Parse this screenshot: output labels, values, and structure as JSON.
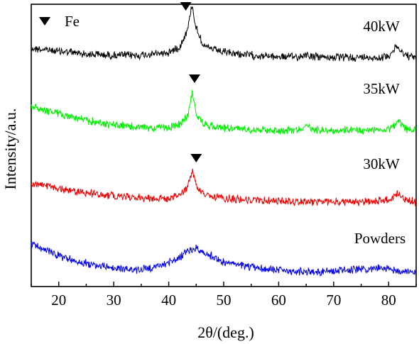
{
  "chart_data": {
    "type": "line",
    "title": "",
    "xlabel": "2θ/(deg.)",
    "ylabel": "Intensity/a.u.",
    "xlim": [
      15,
      85
    ],
    "xticks": [
      20,
      30,
      40,
      50,
      60,
      70,
      80
    ],
    "y_ticks_shown": false,
    "grid": false,
    "legend": {
      "placement": "top-left",
      "symbol": "down-triangle",
      "label": "Fe"
    },
    "series": [
      {
        "name": "40kW",
        "color": "#000000",
        "baseline_points": [
          [
            15,
            68
          ],
          [
            20,
            72
          ],
          [
            25,
            76
          ],
          [
            30,
            78
          ],
          [
            35,
            78
          ],
          [
            40,
            74
          ],
          [
            42,
            66
          ],
          [
            43.5,
            40
          ],
          [
            44.2,
            6
          ],
          [
            45,
            40
          ],
          [
            46.5,
            66
          ],
          [
            50,
            74
          ],
          [
            55,
            78
          ],
          [
            60,
            80
          ],
          [
            64,
            80
          ],
          [
            65,
            76
          ],
          [
            66,
            80
          ],
          [
            70,
            81
          ],
          [
            75,
            81
          ],
          [
            79,
            81
          ],
          [
            80,
            78
          ],
          [
            81.5,
            66
          ],
          [
            83,
            78
          ],
          [
            85,
            82
          ]
        ],
        "peak_marker_x": 43.1
      },
      {
        "name": "35kW",
        "color": "#00ee00",
        "baseline_points": [
          [
            15,
            150
          ],
          [
            20,
            160
          ],
          [
            25,
            170
          ],
          [
            30,
            176
          ],
          [
            35,
            180
          ],
          [
            40,
            180
          ],
          [
            42,
            176
          ],
          [
            43.5,
            162
          ],
          [
            44.3,
            128
          ],
          [
            45,
            162
          ],
          [
            46.5,
            176
          ],
          [
            50,
            180
          ],
          [
            55,
            182
          ],
          [
            60,
            184
          ],
          [
            64,
            182
          ],
          [
            65,
            177
          ],
          [
            66,
            182
          ],
          [
            70,
            184
          ],
          [
            75,
            184
          ],
          [
            80,
            182
          ],
          [
            81.8,
            172
          ],
          [
            83,
            182
          ],
          [
            85,
            184
          ]
        ],
        "peak_marker_x": 44.7
      },
      {
        "name": "30kW",
        "color": "#ee0000",
        "baseline_points": [
          [
            15,
            258
          ],
          [
            20,
            266
          ],
          [
            25,
            272
          ],
          [
            30,
            276
          ],
          [
            35,
            279
          ],
          [
            40,
            280
          ],
          [
            42,
            276
          ],
          [
            43.5,
            262
          ],
          [
            44.3,
            240
          ],
          [
            45,
            262
          ],
          [
            46.5,
            276
          ],
          [
            50,
            280
          ],
          [
            55,
            282
          ],
          [
            60,
            284
          ],
          [
            64,
            284
          ],
          [
            70,
            285
          ],
          [
            75,
            285
          ],
          [
            80,
            282
          ],
          [
            81.8,
            272
          ],
          [
            83,
            282
          ],
          [
            85,
            285
          ]
        ],
        "peak_marker_x": 45.0
      },
      {
        "name": "Powders",
        "color": "#0000ee",
        "baseline_points": [
          [
            15,
            344
          ],
          [
            18,
            354
          ],
          [
            22,
            366
          ],
          [
            26,
            373
          ],
          [
            30,
            378
          ],
          [
            34,
            381
          ],
          [
            37,
            378
          ],
          [
            40,
            370
          ],
          [
            42,
            362
          ],
          [
            44,
            353
          ],
          [
            45,
            351
          ],
          [
            46,
            354
          ],
          [
            48,
            362
          ],
          [
            50,
            370
          ],
          [
            55,
            377
          ],
          [
            60,
            381
          ],
          [
            65,
            383
          ],
          [
            70,
            382
          ],
          [
            75,
            380
          ],
          [
            78,
            378
          ],
          [
            80,
            380
          ],
          [
            85,
            384
          ]
        ],
        "peak_marker_x": null
      }
    ],
    "annotations": [
      {
        "text": "40kW",
        "series": "40kW"
      },
      {
        "text": "35kW",
        "series": "35kW"
      },
      {
        "text": "30kW",
        "series": "30kW"
      },
      {
        "text": "Powders",
        "series": "Powders"
      }
    ]
  }
}
